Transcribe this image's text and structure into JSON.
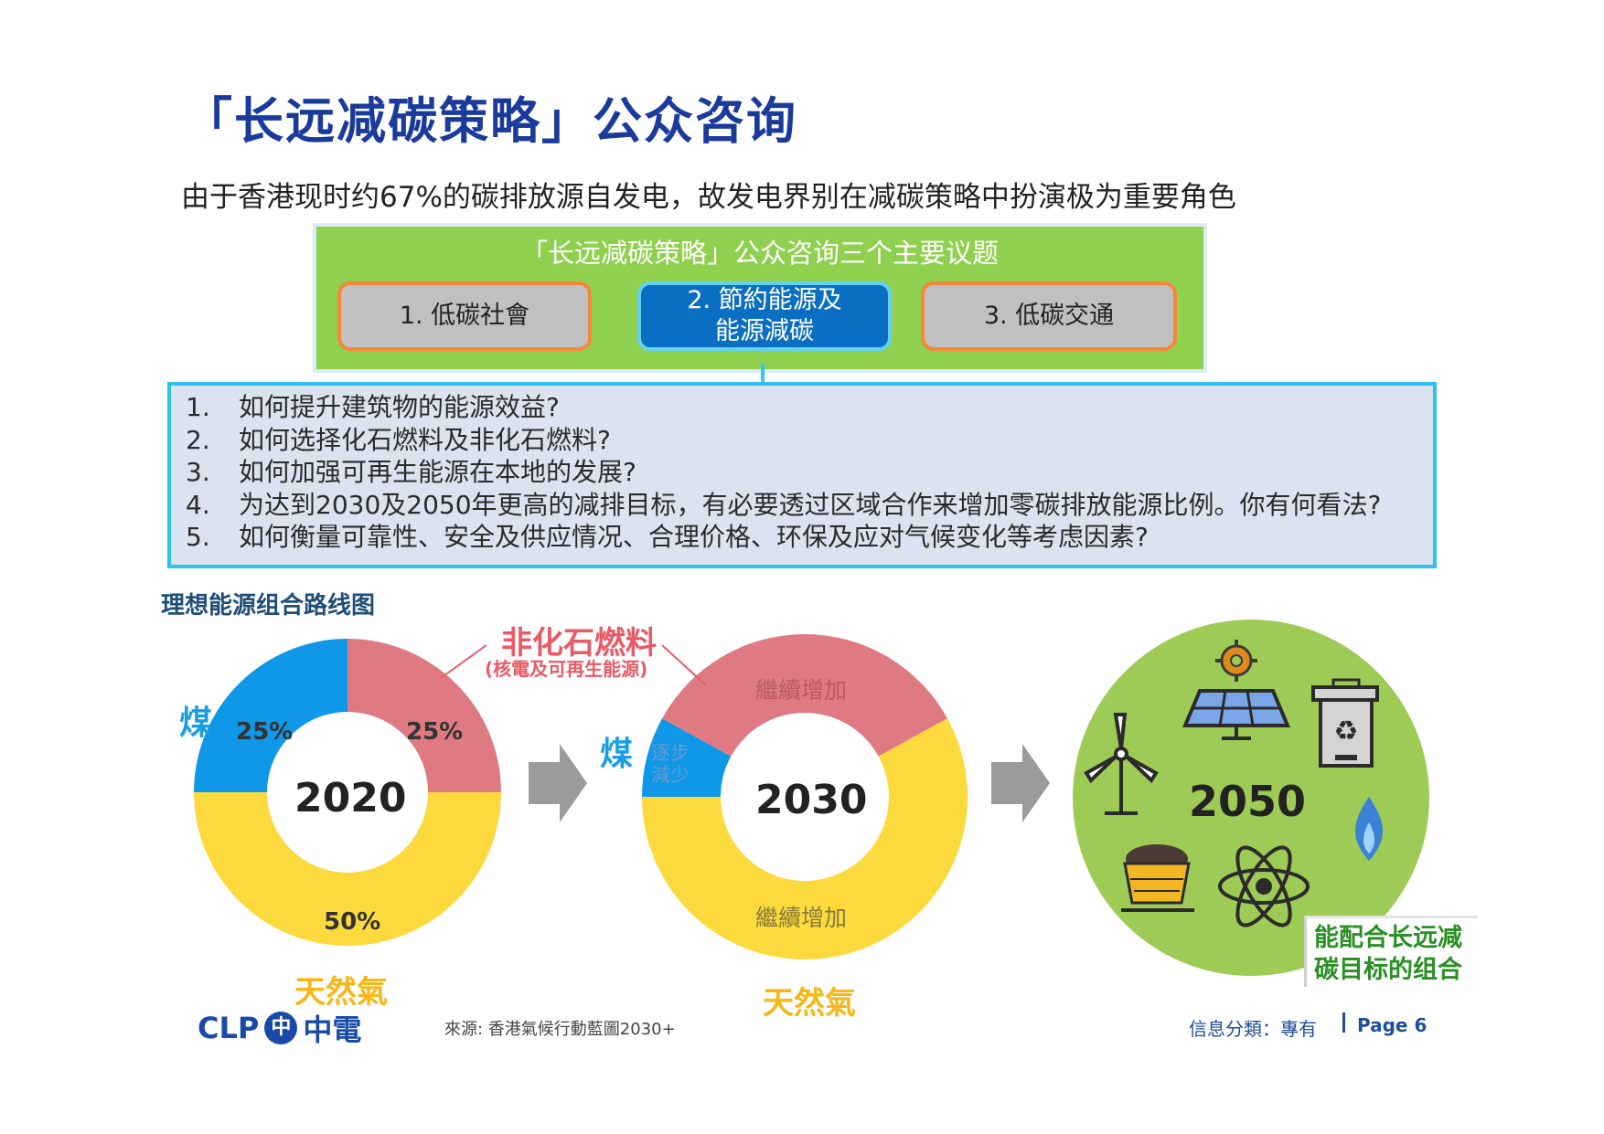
{
  "header": {
    "title": "「长远减碳策略」公众咨询",
    "subtitle": "由于香港现时约67%的碳排放源自发电，故发电界别在减碳策略中扮演极为重要角色"
  },
  "consultation": {
    "heading": "「长远减碳策略」公众咨询三个主要议题",
    "topics": [
      {
        "label": "1. 低碳社會"
      },
      {
        "label": "2. 節約能源及\n能源減碳"
      },
      {
        "label": "3. 低碳交通"
      }
    ]
  },
  "questions": [
    {
      "num": "1.",
      "text": "如何提升建筑物的能源效益?"
    },
    {
      "num": "2.",
      "text": "如何选择化石燃料及非化石燃料?"
    },
    {
      "num": "3.",
      "text": "如何加强可再生能源在本地的发展?"
    },
    {
      "num": "4.",
      "text": "为达到2030及2050年更高的减排目标，有必要透过区域合作来增加零碳排放能源比例。你有何看法?"
    },
    {
      "num": "5.",
      "text": "如何衡量可靠性、安全及供应情况、合理价格、环保及应对气候变化等考虑因素?"
    }
  ],
  "roadmap": {
    "title": "理想能源组合路线图",
    "non_fossil_label": "非化石燃料",
    "non_fossil_sub": "(核電及可再生能源)",
    "coal_label": "煤",
    "gas_label": "天然氣",
    "colors": {
      "coal": "#0f97e8",
      "nonfossil": "#e07a82",
      "gas": "#fcd93c",
      "green": "#9ecb55"
    },
    "chart_2020": {
      "year": "2020",
      "segments": [
        {
          "key": "coal",
          "value": 25,
          "label": "25%"
        },
        {
          "key": "nonfossil",
          "value": 25,
          "label": "25%"
        },
        {
          "key": "gas",
          "value": 50,
          "label": "50%"
        }
      ]
    },
    "chart_2030": {
      "year": "2030",
      "segments": [
        {
          "key": "coal",
          "value": 8,
          "label": "逐步\n減少"
        },
        {
          "key": "nonfossil",
          "value": 34,
          "label": "繼續增加"
        },
        {
          "key": "gas",
          "value": 58,
          "label": "繼續增加"
        }
      ]
    },
    "chart_2050": {
      "year": "2050",
      "note": "能配合长远减\n碳目标的组合",
      "icons": [
        "wind-turbine-icon",
        "gear-icon",
        "solar-panel-icon",
        "recycle-bin-icon",
        "gas-flame-icon",
        "coal-cart-icon",
        "atom-icon"
      ]
    }
  },
  "footer": {
    "logo_text": "CLP",
    "logo_cn": "中電",
    "source": "來源: 香港氣候行動藍圖2030+",
    "classification": "信息分類：專有",
    "page": "Page 6"
  }
}
